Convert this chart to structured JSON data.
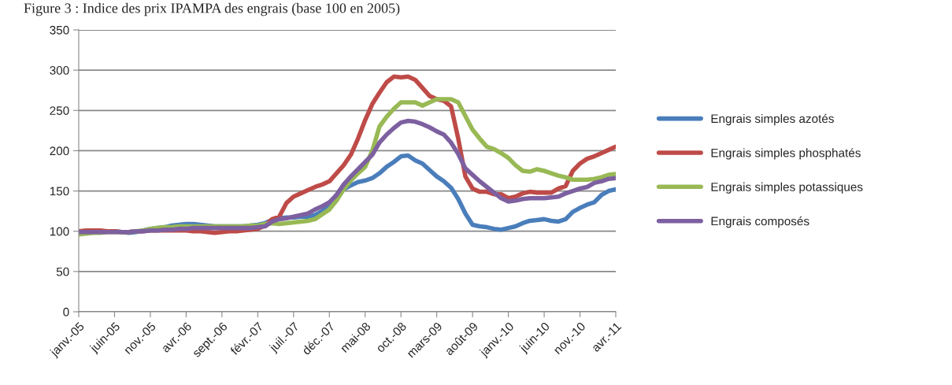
{
  "chart_data": {
    "type": "line",
    "title": "Figure 3 : Indice des prix IPAMPA des engrais (base 100 en 2005)",
    "categories": [
      "janv.-05",
      null,
      null,
      null,
      null,
      "juin-05",
      null,
      null,
      null,
      null,
      "nov.-05",
      null,
      null,
      null,
      null,
      "avr.-06",
      null,
      null,
      null,
      null,
      "sept.-06",
      null,
      null,
      null,
      null,
      "févr.-07",
      null,
      null,
      null,
      null,
      "juil.-07",
      null,
      null,
      null,
      null,
      "déc.-07",
      null,
      null,
      null,
      null,
      "mai-08",
      null,
      null,
      null,
      null,
      "oct.-08",
      null,
      null,
      null,
      null,
      "mars-09",
      null,
      null,
      null,
      null,
      "août-09",
      null,
      null,
      null,
      null,
      "janv.-10",
      null,
      null,
      null,
      null,
      "juin-10",
      null,
      null,
      null,
      null,
      "nov.-10",
      null,
      null,
      null,
      null,
      "avr.-11"
    ],
    "series": [
      {
        "name": "Engrais simples azotés",
        "color": "#4a7ebb",
        "values": [
          null,
          null,
          null,
          null,
          null,
          100,
          99,
          98,
          99,
          101,
          103,
          104,
          105,
          107,
          108,
          109,
          109,
          108,
          107,
          106,
          106,
          106,
          106,
          106,
          107,
          108,
          110,
          114,
          116,
          117,
          117,
          118,
          118,
          120,
          125,
          133,
          145,
          152,
          157,
          161,
          163,
          166,
          172,
          180,
          186,
          193,
          194,
          188,
          184,
          176,
          168,
          162,
          154,
          140,
          122,
          108,
          106,
          105,
          103,
          102,
          104,
          106,
          110,
          113,
          114,
          115,
          113,
          112,
          115,
          124,
          129,
          133,
          136,
          145,
          150,
          152
        ]
      },
      {
        "name": "Engrais simples phosphatés",
        "color": "#be4b48",
        "values": [
          100,
          101,
          101,
          101,
          100,
          100,
          99,
          99,
          100,
          100,
          101,
          101,
          101,
          101,
          101,
          101,
          100,
          100,
          99,
          98,
          99,
          100,
          100,
          101,
          102,
          103,
          107,
          115,
          118,
          135,
          143,
          147,
          151,
          155,
          158,
          162,
          172,
          182,
          195,
          215,
          238,
          258,
          272,
          285,
          292,
          291,
          292,
          288,
          278,
          268,
          264,
          262,
          255,
          215,
          168,
          153,
          149,
          149,
          146,
          146,
          141,
          143,
          147,
          149,
          148,
          148,
          148,
          153,
          156,
          175,
          184,
          190,
          193,
          197,
          201,
          205
        ]
      },
      {
        "name": "Engrais simples potassiques",
        "color": "#98b954",
        "values": [
          96,
          97,
          98,
          98,
          99,
          99,
          99,
          99,
          100,
          101,
          103,
          104,
          105,
          105,
          106,
          106,
          106,
          106,
          106,
          106,
          106,
          106,
          106,
          106,
          107,
          107,
          109,
          110,
          109,
          110,
          111,
          112,
          113,
          115,
          121,
          127,
          138,
          152,
          163,
          172,
          180,
          200,
          230,
          242,
          252,
          260,
          260,
          260,
          256,
          260,
          264,
          264,
          264,
          260,
          243,
          226,
          215,
          205,
          202,
          197,
          191,
          182,
          175,
          174,
          177,
          175,
          172,
          169,
          167,
          164,
          164,
          164,
          165,
          167,
          170,
          171
        ]
      },
      {
        "name": "Engrais composés",
        "color": "#7d60a0",
        "values": [
          99,
          99,
          99,
          99,
          99,
          99,
          99,
          99,
          100,
          100,
          101,
          101,
          102,
          102,
          103,
          103,
          104,
          104,
          104,
          104,
          104,
          104,
          104,
          104,
          104,
          105,
          106,
          112,
          115,
          116,
          118,
          120,
          122,
          127,
          131,
          136,
          145,
          158,
          168,
          177,
          186,
          195,
          210,
          220,
          228,
          235,
          237,
          236,
          233,
          229,
          224,
          220,
          210,
          196,
          178,
          170,
          162,
          155,
          148,
          141,
          137,
          138,
          140,
          141,
          141,
          141,
          142,
          143,
          147,
          150,
          153,
          155,
          160,
          162,
          165,
          166
        ]
      }
    ],
    "ylim": [
      0,
      350
    ],
    "yticks": [
      0,
      50,
      100,
      150,
      200,
      250,
      300,
      350
    ],
    "grid": "y",
    "legend": "right",
    "marker": "none",
    "line_style": "solid"
  }
}
